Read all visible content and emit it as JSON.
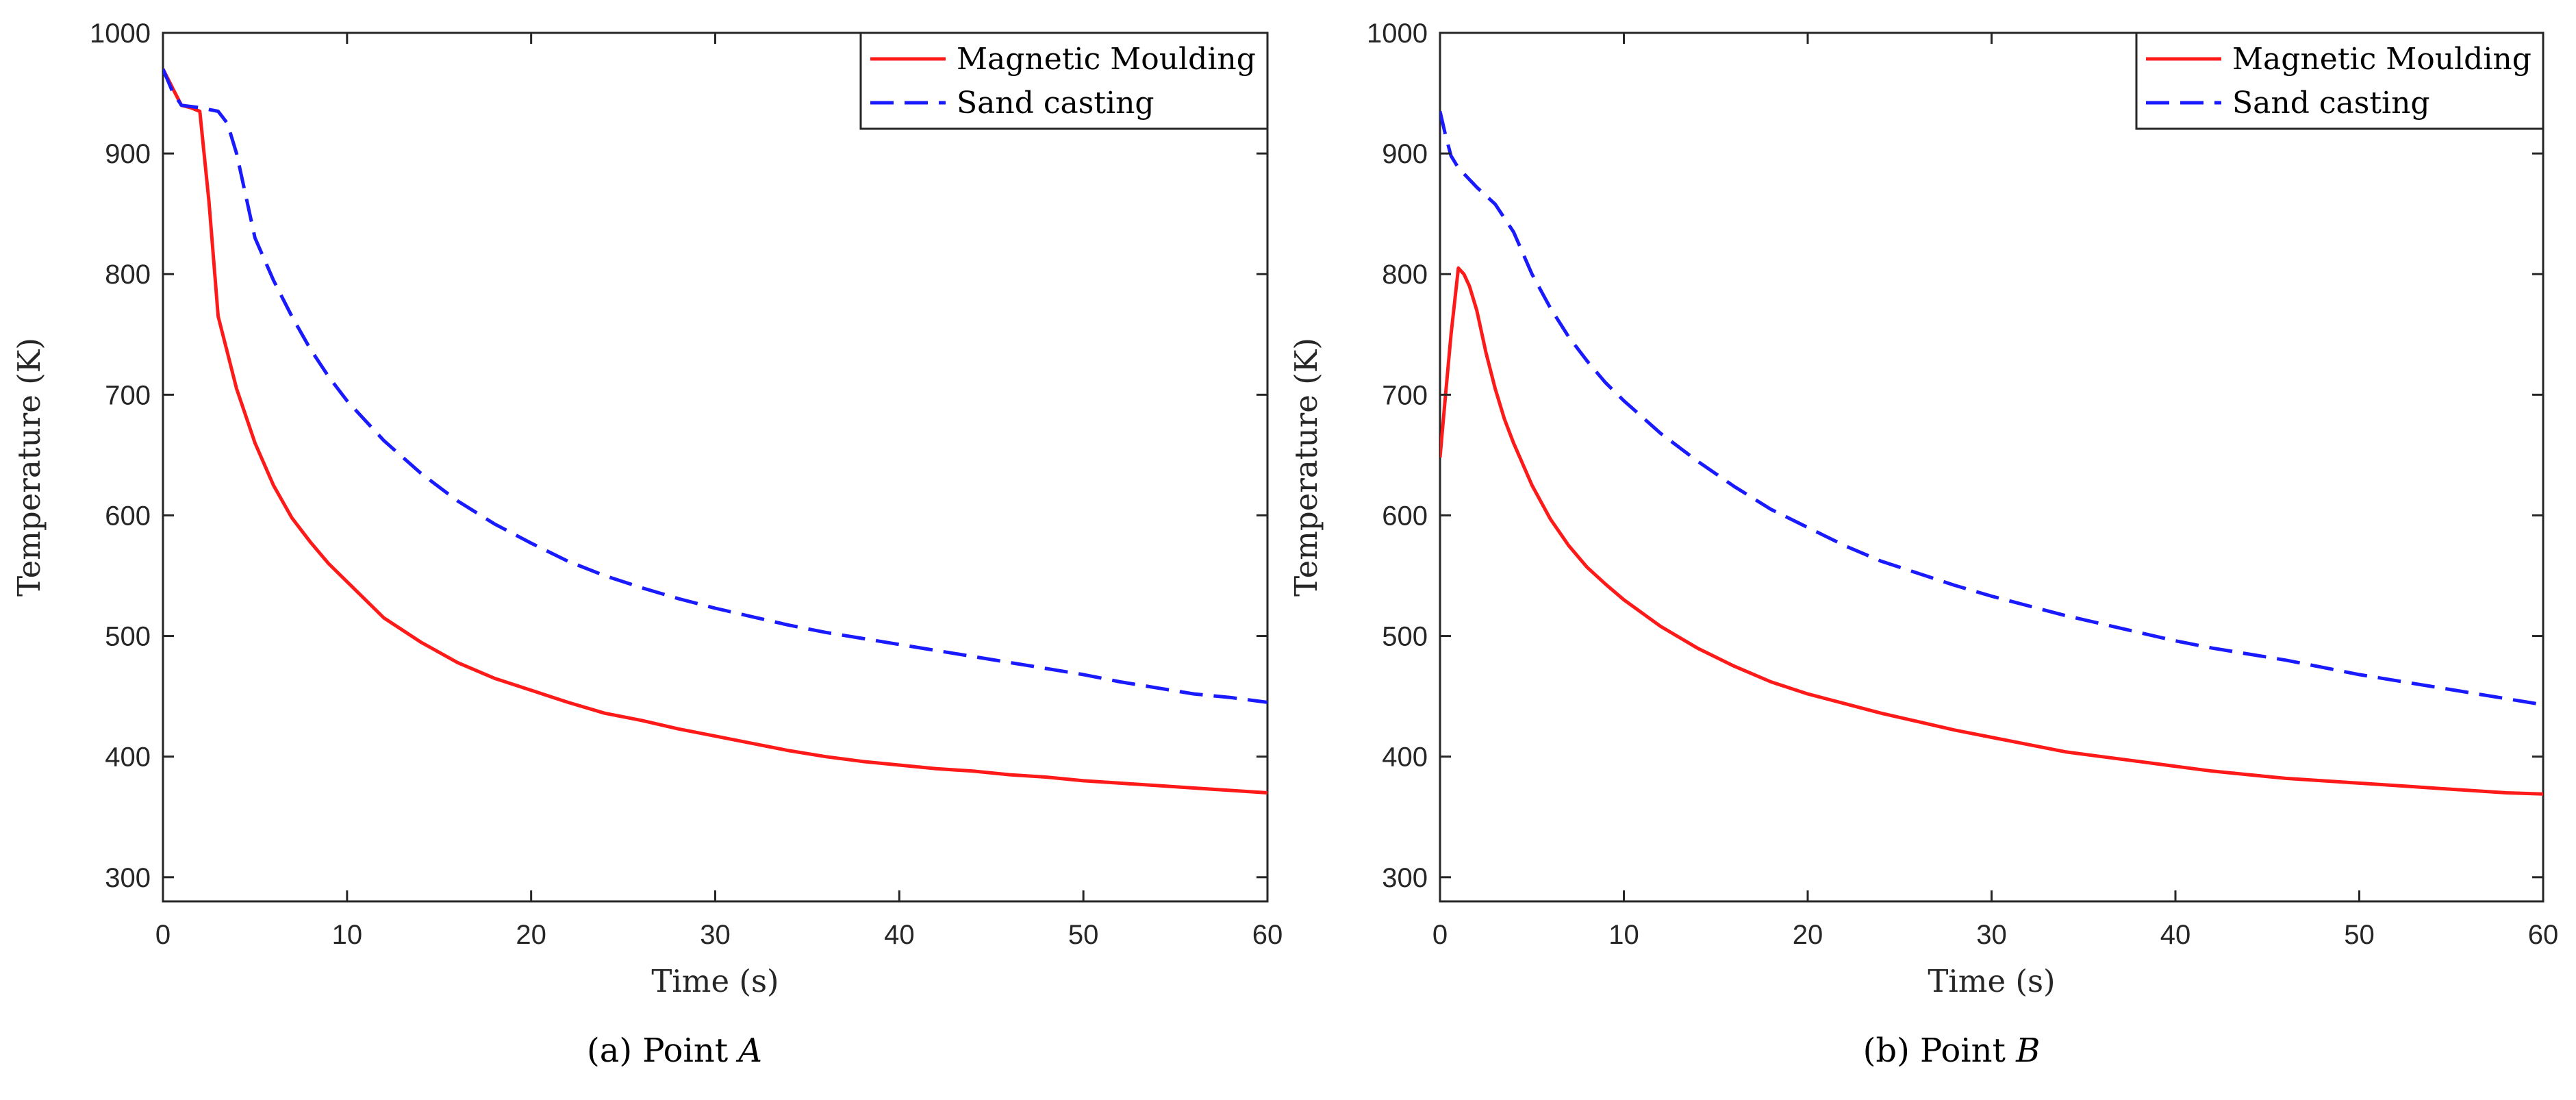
{
  "chart_data": [
    {
      "type": "line",
      "caption": {
        "prefix": "(a) Point",
        "point": "A"
      },
      "title": "",
      "xlabel": "Time (s)",
      "ylabel": "Temperature (K)",
      "xlim": [
        0,
        60
      ],
      "ylim": [
        280,
        1000
      ],
      "xticks": [
        0,
        10,
        20,
        30,
        40,
        50,
        60
      ],
      "yticks": [
        300,
        400,
        500,
        600,
        700,
        800,
        900,
        1000
      ],
      "grid": false,
      "legend_position": "top-right",
      "series": [
        {
          "name": "Magnetic Moulding",
          "color": "#ff1a1a",
          "dash": "solid",
          "x": [
            0,
            0.5,
            1,
            1.5,
            2,
            2.5,
            3,
            3.5,
            4,
            5,
            6,
            7,
            8,
            9,
            10,
            12,
            14,
            16,
            18,
            20,
            22,
            24,
            26,
            28,
            30,
            32,
            34,
            36,
            38,
            40,
            42,
            44,
            46,
            48,
            50,
            52,
            54,
            56,
            58,
            60
          ],
          "y": [
            970,
            955,
            940,
            938,
            935,
            860,
            765,
            735,
            705,
            660,
            625,
            598,
            578,
            560,
            545,
            515,
            495,
            478,
            465,
            455,
            445,
            436,
            430,
            423,
            417,
            411,
            405,
            400,
            396,
            393,
            390,
            388,
            385,
            383,
            380,
            378,
            376,
            374,
            372,
            370
          ]
        },
        {
          "name": "Sand casting",
          "color": "#1a1aff",
          "dash": "dashed",
          "x": [
            0,
            0.5,
            1,
            2,
            3,
            3.5,
            4,
            5,
            6,
            7,
            8,
            9,
            10,
            12,
            14,
            16,
            18,
            20,
            22,
            24,
            26,
            28,
            30,
            32,
            34,
            36,
            38,
            40,
            42,
            44,
            46,
            48,
            50,
            52,
            54,
            56,
            58,
            60
          ],
          "y": [
            970,
            952,
            940,
            938,
            935,
            925,
            900,
            830,
            795,
            765,
            738,
            715,
            695,
            662,
            635,
            612,
            593,
            577,
            562,
            550,
            540,
            531,
            523,
            516,
            509,
            503,
            498,
            493,
            488,
            483,
            478,
            473,
            468,
            462,
            457,
            452,
            449,
            445
          ]
        }
      ]
    },
    {
      "type": "line",
      "caption": {
        "prefix": "(b) Point",
        "point": "B"
      },
      "title": "",
      "xlabel": "Time (s)",
      "ylabel": "Temperature (K)",
      "xlim": [
        0,
        60
      ],
      "ylim": [
        280,
        1000
      ],
      "xticks": [
        0,
        10,
        20,
        30,
        40,
        50,
        60
      ],
      "yticks": [
        300,
        400,
        500,
        600,
        700,
        800,
        900,
        1000
      ],
      "grid": false,
      "legend_position": "top-right",
      "series": [
        {
          "name": "Magnetic Moulding",
          "color": "#ff1a1a",
          "dash": "solid",
          "x": [
            0,
            0.3,
            0.6,
            1,
            1.3,
            1.6,
            2,
            2.5,
            3,
            3.5,
            4,
            5,
            6,
            7,
            8,
            9,
            10,
            12,
            14,
            16,
            18,
            20,
            22,
            24,
            26,
            28,
            30,
            32,
            34,
            36,
            38,
            40,
            42,
            44,
            46,
            48,
            50,
            52,
            54,
            56,
            58,
            60
          ],
          "y": [
            648,
            700,
            750,
            805,
            800,
            790,
            770,
            735,
            705,
            680,
            660,
            625,
            597,
            575,
            557,
            543,
            530,
            508,
            490,
            475,
            462,
            452,
            444,
            436,
            429,
            422,
            416,
            410,
            404,
            400,
            396,
            392,
            388,
            385,
            382,
            380,
            378,
            376,
            374,
            372,
            370,
            369
          ]
        },
        {
          "name": "Sand casting",
          "color": "#1a1aff",
          "dash": "dashed",
          "x": [
            0,
            0.3,
            0.6,
            1,
            1.5,
            2,
            3,
            4,
            5,
            6,
            7,
            8,
            9,
            10,
            12,
            14,
            16,
            18,
            20,
            22,
            24,
            26,
            28,
            30,
            32,
            34,
            36,
            38,
            40,
            42,
            44,
            46,
            48,
            50,
            52,
            54,
            56,
            58,
            60
          ],
          "y": [
            935,
            915,
            898,
            888,
            880,
            872,
            858,
            835,
            800,
            772,
            748,
            728,
            710,
            695,
            668,
            645,
            624,
            605,
            590,
            575,
            562,
            552,
            542,
            533,
            525,
            517,
            510,
            503,
            496,
            490,
            485,
            480,
            474,
            468,
            463,
            458,
            453,
            448,
            443
          ]
        }
      ]
    }
  ]
}
